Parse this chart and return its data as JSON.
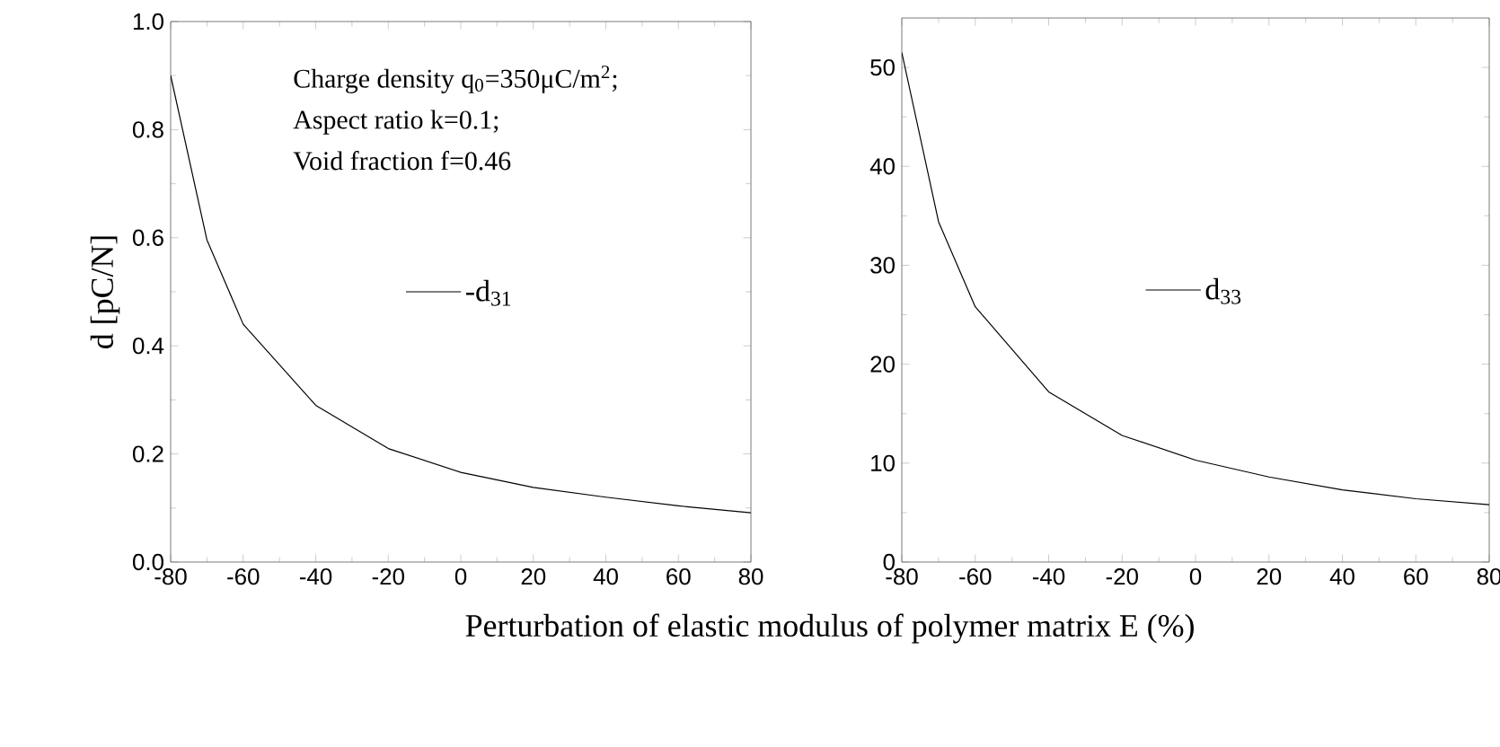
{
  "chart_data": [
    {
      "type": "line",
      "ylabel": "d [pC/N]",
      "xlabel": "Perturbation of elastic modulus of polymer matrix E (%)",
      "x": [
        -80,
        -70,
        -60,
        -40,
        -20,
        0,
        20,
        40,
        60,
        80
      ],
      "series": [
        {
          "name": "-d$_{31}$",
          "color": "#000000",
          "values": [
            0.9,
            0.596,
            0.44,
            0.29,
            0.21,
            0.166,
            0.138,
            0.12,
            0.104,
            0.091
          ]
        }
      ],
      "xlim": [
        -80,
        80
      ],
      "xticks": [
        -80,
        -60,
        -40,
        -20,
        0,
        20,
        40,
        60,
        80
      ],
      "ylim": [
        0,
        1.0
      ],
      "yticks": [
        {
          "value": 0,
          "label": "0.0"
        },
        0.2,
        0.4,
        0.6,
        0.8,
        {
          "value": 1.0,
          "label": "1.0"
        }
      ],
      "legend": "center",
      "annotations": [
        "Charge density q$_{0}$=350μC/m$^{2}$;",
        "Aspect ratio k=0.1;",
        "Void fraction f=0.46"
      ]
    },
    {
      "type": "line",
      "x": [
        -80,
        -70,
        -60,
        -40,
        -20,
        0,
        20,
        40,
        60,
        80
      ],
      "series": [
        {
          "name": "d$_{33}$",
          "color": "#000000",
          "values": [
            51.5,
            34.4,
            25.8,
            17.2,
            12.8,
            10.3,
            8.6,
            7.3,
            6.4,
            5.8
          ]
        }
      ],
      "xlim": [
        -80,
        80
      ],
      "xticks": [
        -80,
        -60,
        -40,
        -20,
        0,
        20,
        40,
        60,
        80
      ],
      "ylim": [
        0,
        55
      ],
      "yticks": [
        0,
        10,
        20,
        30,
        40,
        50
      ],
      "legend": "center"
    }
  ]
}
